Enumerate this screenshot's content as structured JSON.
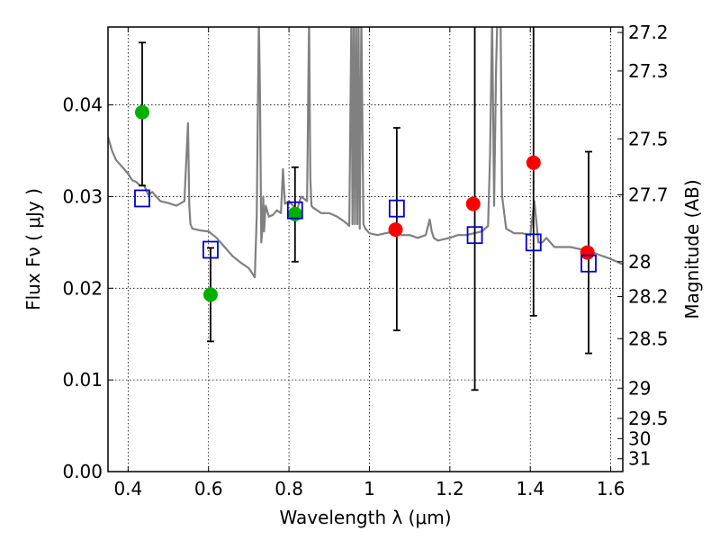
{
  "chart_data": {
    "type": "scatter",
    "xlabel": "Wavelength  λ (μm)",
    "ylabel": "Flux  Fν  ( μJy )",
    "y2label": "Magnitude (AB)",
    "xlim": [
      0.35,
      1.63
    ],
    "ylim": [
      0.0,
      0.0485
    ],
    "x_ticks": [
      0.4,
      0.6,
      0.8,
      1.0,
      1.2,
      1.4,
      1.6
    ],
    "x_tick_labels": [
      "0.4",
      "0.6",
      "0.8",
      "1",
      "1.2",
      "1.4",
      "1.6"
    ],
    "y_ticks": [
      0.0,
      0.01,
      0.02,
      0.03,
      0.04
    ],
    "y_tick_labels": [
      "0.00",
      "0.01",
      "0.02",
      "0.03",
      "0.04"
    ],
    "y2_ticks": [
      {
        "flux": 0.0479,
        "label": "27.2"
      },
      {
        "flux": 0.0437,
        "label": "27.3"
      },
      {
        "flux": 0.0363,
        "label": "27.5"
      },
      {
        "flux": 0.0302,
        "label": "27.7"
      },
      {
        "flux": 0.0229,
        "label": "28"
      },
      {
        "flux": 0.0191,
        "label": "28.2"
      },
      {
        "flux": 0.0145,
        "label": "28.5"
      },
      {
        "flux": 0.0091,
        "label": "29"
      },
      {
        "flux": 0.0058,
        "label": "29.5"
      },
      {
        "flux": 0.0036,
        "label": "30"
      },
      {
        "flux": 0.0014,
        "label": "31"
      }
    ],
    "grid": true,
    "model_spectrum": {
      "color": "#808080",
      "x": [
        0.35,
        0.36,
        0.37,
        0.38,
        0.39,
        0.4,
        0.41,
        0.42,
        0.43,
        0.44,
        0.45,
        0.46,
        0.48,
        0.5,
        0.52,
        0.54,
        0.549,
        0.552,
        0.555,
        0.56,
        0.58,
        0.6,
        0.62,
        0.64,
        0.66,
        0.68,
        0.7,
        0.715,
        0.72,
        0.725,
        0.728,
        0.731,
        0.734,
        0.736,
        0.738,
        0.742,
        0.75,
        0.76,
        0.77,
        0.78,
        0.785,
        0.79,
        0.8,
        0.81,
        0.82,
        0.83,
        0.845,
        0.85,
        0.853,
        0.856,
        0.86,
        0.87,
        0.88,
        0.9,
        0.92,
        0.94,
        0.95,
        0.955,
        0.958,
        0.961,
        0.964,
        0.967,
        0.97,
        0.973,
        0.976,
        0.98,
        0.985,
        0.99,
        1.0,
        1.02,
        1.04,
        1.06,
        1.08,
        1.1,
        1.12,
        1.14,
        1.15,
        1.155,
        1.16,
        1.17,
        1.2,
        1.22,
        1.24,
        1.26,
        1.28,
        1.295,
        1.3,
        1.305,
        1.31,
        1.315,
        1.318,
        1.322,
        1.326,
        1.33,
        1.34,
        1.36,
        1.38,
        1.4,
        1.41,
        1.42,
        1.43,
        1.44,
        1.46,
        1.5,
        1.55,
        1.58,
        1.6,
        1.62,
        1.63
      ],
      "y": [
        0.0365,
        0.035,
        0.034,
        0.0335,
        0.033,
        0.0325,
        0.0318,
        0.0316,
        0.0312,
        0.0312,
        0.0302,
        0.0305,
        0.0295,
        0.0293,
        0.029,
        0.0295,
        0.038,
        0.029,
        0.027,
        0.0265,
        0.0263,
        0.0262,
        0.0255,
        0.0245,
        0.0235,
        0.0228,
        0.0222,
        0.0212,
        0.028,
        0.0495,
        0.041,
        0.025,
        0.0265,
        0.03,
        0.0262,
        0.029,
        0.0278,
        0.028,
        0.0285,
        0.0282,
        0.033,
        0.0292,
        0.0295,
        0.029,
        0.0285,
        0.03,
        0.0295,
        0.0495,
        0.032,
        0.029,
        0.0288,
        0.0285,
        0.0282,
        0.0282,
        0.0278,
        0.0272,
        0.0268,
        0.0495,
        0.027,
        0.0495,
        0.027,
        0.0495,
        0.027,
        0.0495,
        0.0265,
        0.0495,
        0.027,
        0.0265,
        0.026,
        0.0258,
        0.026,
        0.0262,
        0.0258,
        0.0258,
        0.0255,
        0.0258,
        0.0275,
        0.0262,
        0.0255,
        0.0252,
        0.0255,
        0.0258,
        0.0258,
        0.026,
        0.0262,
        0.0268,
        0.0345,
        0.0495,
        0.029,
        0.044,
        0.0495,
        0.0495,
        0.0495,
        0.03,
        0.0265,
        0.026,
        0.026,
        0.0258,
        0.0295,
        0.025,
        0.025,
        0.0255,
        0.0245,
        0.0245,
        0.024,
        0.0235,
        0.0232,
        0.0228,
        0.0226
      ]
    },
    "series": [
      {
        "marker": "circle",
        "color": "#00b000",
        "x": [
          0.435,
          0.605,
          0.815
        ],
        "y": [
          0.0392,
          0.0193,
          0.0281
        ]
      },
      {
        "marker": "circle",
        "color": "#ff0000",
        "x": [
          1.065,
          1.258,
          1.408,
          1.542
        ],
        "y": [
          0.0264,
          0.0292,
          0.0337,
          0.0239
        ]
      },
      {
        "marker": "open-square",
        "color": "#0000cc",
        "x": [
          0.435,
          0.605,
          0.815,
          1.068,
          1.262,
          1.408,
          1.545
        ],
        "y": [
          0.0298,
          0.0242,
          0.0285,
          0.0287,
          0.0258,
          0.025,
          0.0227
        ]
      }
    ],
    "error_bars": [
      {
        "x": 0.435,
        "lo": 0.0312,
        "hi": 0.0468
      },
      {
        "x": 0.605,
        "lo": 0.0142,
        "hi": 0.0244
      },
      {
        "x": 0.815,
        "lo": 0.0229,
        "hi": 0.0332
      },
      {
        "x": 1.068,
        "lo": 0.0154,
        "hi": 0.0375
      },
      {
        "x": 1.262,
        "lo": 0.0089,
        "hi": 0.0495
      },
      {
        "x": 1.408,
        "lo": 0.017,
        "hi": 0.0495
      },
      {
        "x": 1.545,
        "lo": 0.0129,
        "hi": 0.0349
      }
    ]
  }
}
